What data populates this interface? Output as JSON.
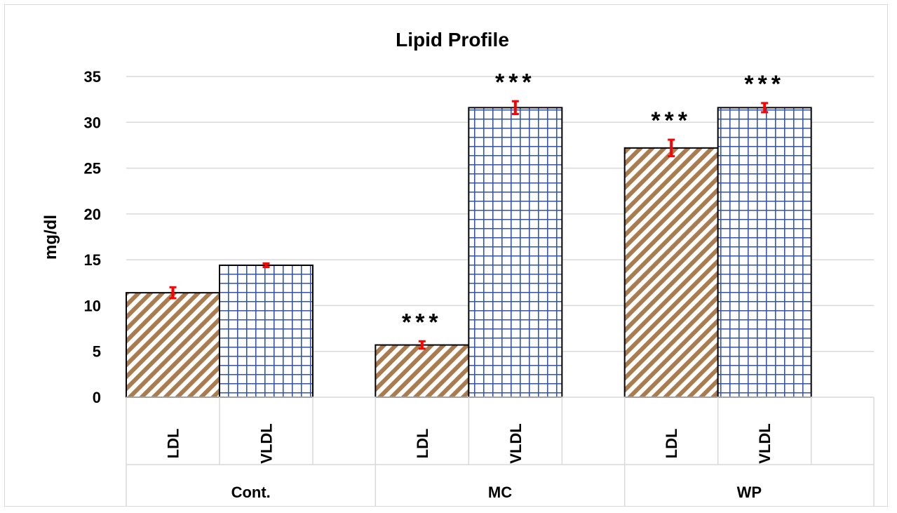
{
  "chart_data": {
    "type": "bar",
    "title": "Lipid Profile",
    "ylabel": "mg/dl",
    "xlabel": "",
    "ylim": [
      0,
      35
    ],
    "yticks": [
      0,
      5,
      10,
      15,
      20,
      25,
      30,
      35
    ],
    "grid": true,
    "legend": "none",
    "groups": [
      {
        "label": "Cont.",
        "bars": [
          {
            "label": "LDL",
            "value": 11.4,
            "error": 0.6,
            "significance": ""
          },
          {
            "label": "VLDL",
            "value": 14.4,
            "error": 0.2,
            "significance": ""
          }
        ]
      },
      {
        "label": "MC",
        "bars": [
          {
            "label": "LDL",
            "value": 5.7,
            "error": 0.4,
            "significance": "***"
          },
          {
            "label": "VLDL",
            "value": 31.6,
            "error": 0.7,
            "significance": "***"
          }
        ]
      },
      {
        "label": "WP",
        "bars": [
          {
            "label": "LDL",
            "value": 27.2,
            "error": 0.9,
            "significance": "***"
          },
          {
            "label": "VLDL",
            "value": 31.6,
            "error": 0.5,
            "significance": "***"
          }
        ]
      }
    ],
    "colors": {
      "ldl_stripe": "#a97c50",
      "vldl_grid": "#2f52b4",
      "error_bar": "#ff0000",
      "gridline": "#d9d9d9",
      "bar_outline": "#000000"
    }
  }
}
